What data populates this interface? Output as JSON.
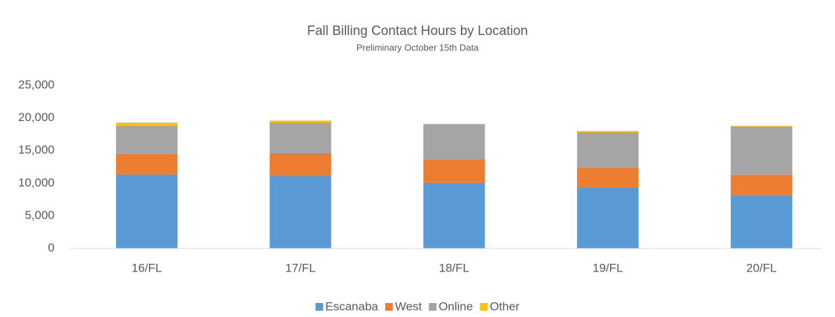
{
  "chart_data": {
    "type": "stacked_bar",
    "title": "Fall Billing Contact Hours by Location",
    "subtitle": "Preliminary October 15th Data",
    "categories": [
      "16/FL",
      "17/FL",
      "18/FL",
      "19/FL",
      "20/FL"
    ],
    "series": [
      {
        "name": "Escanaba",
        "color": "#5b9bd5",
        "values": [
          11400,
          11200,
          10100,
          9400,
          8200
        ]
      },
      {
        "name": "West",
        "color": "#ed7d31",
        "values": [
          3100,
          3400,
          3600,
          3000,
          3100
        ]
      },
      {
        "name": "Online",
        "color": "#a5a5a5",
        "values": [
          4300,
          4700,
          5300,
          5400,
          7400
        ]
      },
      {
        "name": "Other",
        "color": "#ffc000",
        "values": [
          500,
          300,
          100,
          200,
          100
        ]
      }
    ],
    "ylim": [
      0,
      25000
    ],
    "yticks": [
      0,
      {
        "value": 5000,
        "label": "5,000"
      },
      {
        "value": 10000,
        "label": "10,000"
      },
      {
        "value": 15000,
        "label": "15,000"
      },
      {
        "value": 20000,
        "label": "20,000"
      },
      {
        "value": 25000,
        "label": "25,000"
      }
    ],
    "grid": false,
    "legend": "bottom"
  }
}
